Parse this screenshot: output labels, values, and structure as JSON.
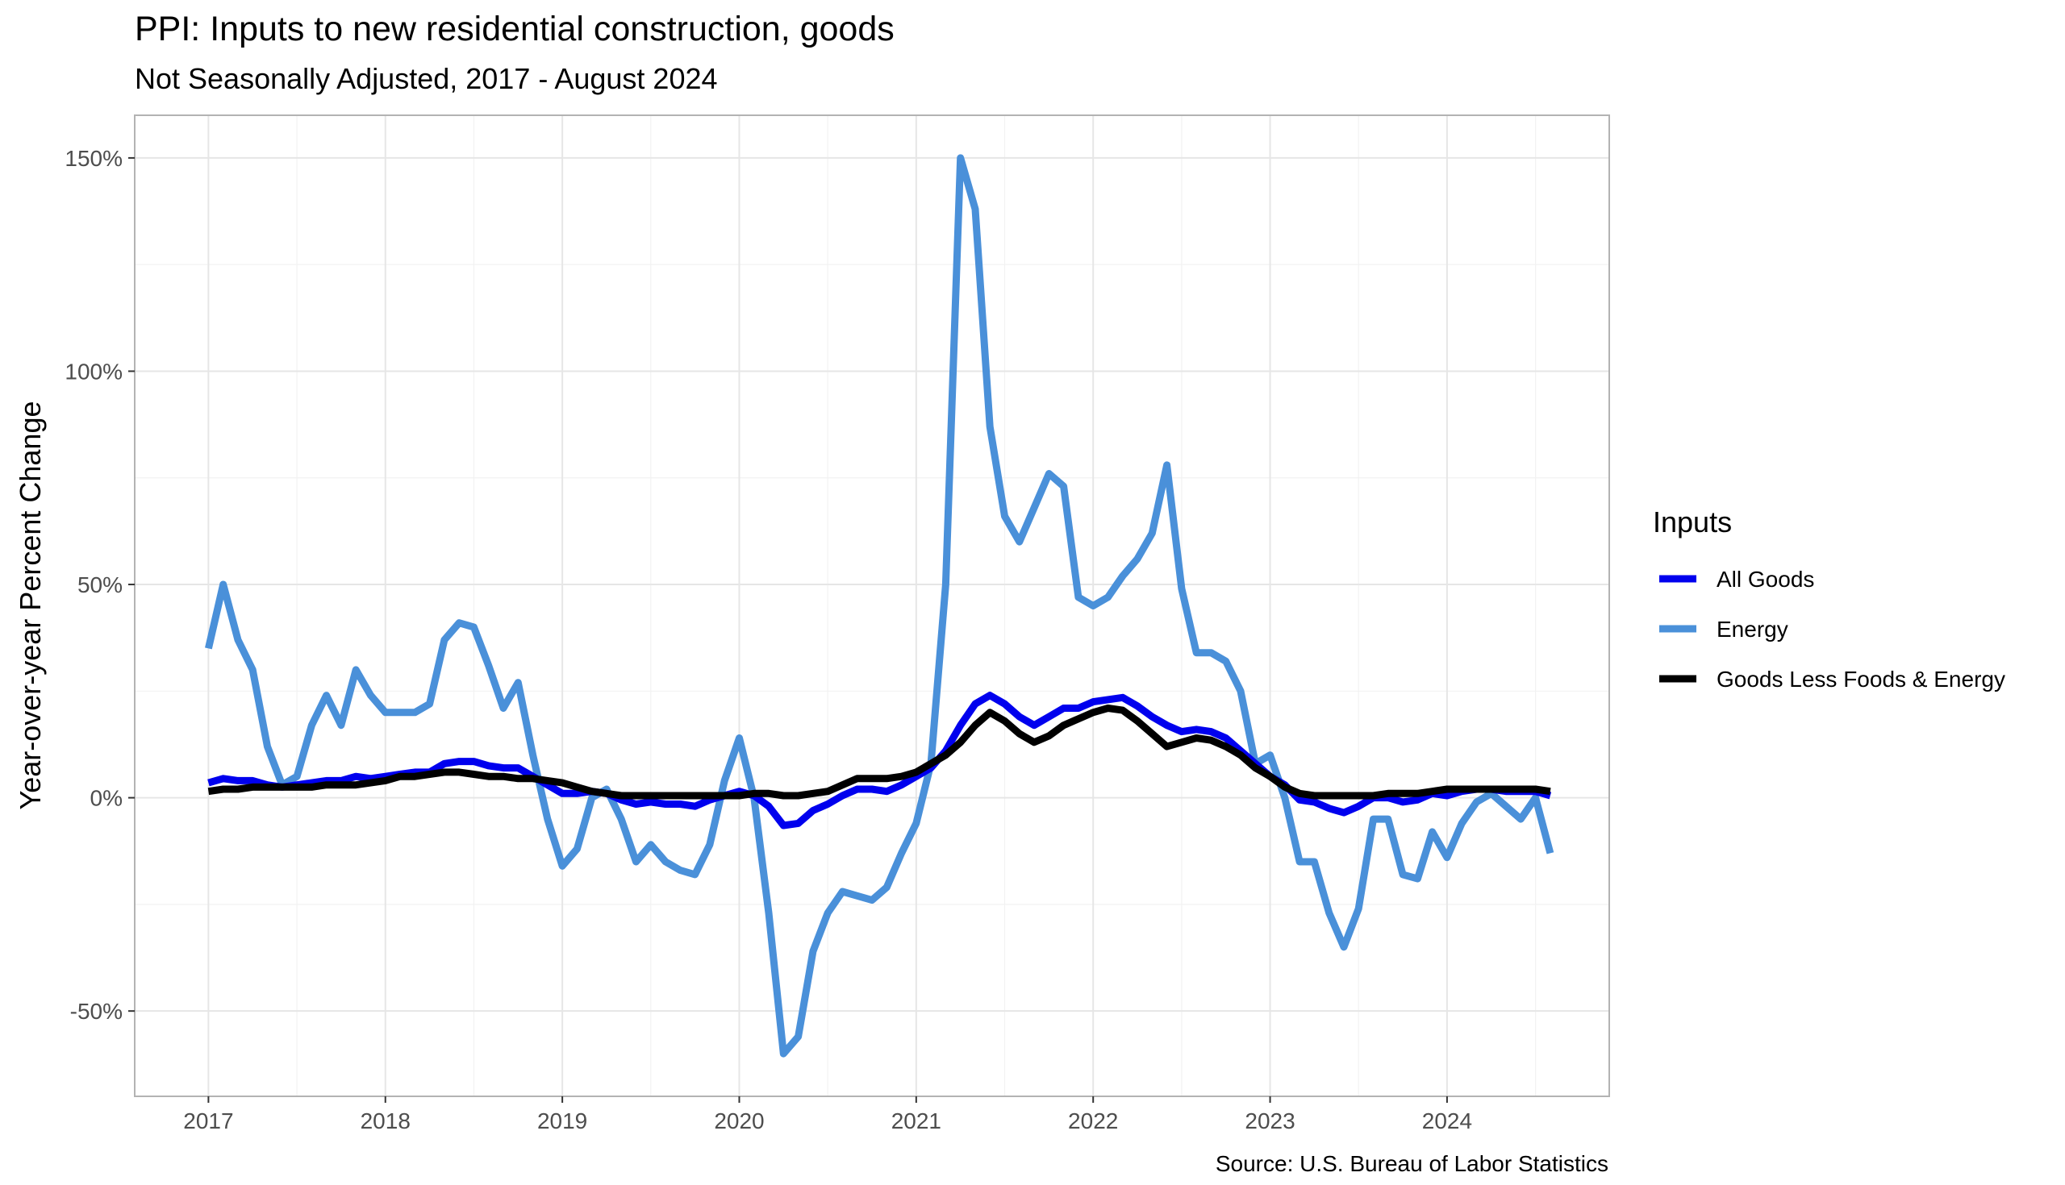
{
  "chart_data": {
    "type": "line",
    "title": "PPI: Inputs to new residential construction, goods",
    "subtitle": "Not Seasonally Adjusted, 2017 - August 2024",
    "ylabel": "Year-over-year Percent Change",
    "xlabel": "",
    "caption": "Source: U.S. Bureau of Labor Statistics",
    "x_ticks": [
      "2017",
      "2018",
      "2019",
      "2020",
      "2021",
      "2022",
      "2023",
      "2024"
    ],
    "y_ticks": [
      "-50%",
      "0%",
      "50%",
      "100%",
      "150%"
    ],
    "y_tick_values": [
      -50,
      0,
      50,
      100,
      150
    ],
    "xlim": [
      "2016-08",
      "2024-12"
    ],
    "ylim": [
      -70,
      160
    ],
    "grid": true,
    "legend": {
      "title": "Inputs",
      "position": "right"
    },
    "x": [
      "2017-01",
      "2017-02",
      "2017-03",
      "2017-04",
      "2017-05",
      "2017-06",
      "2017-07",
      "2017-08",
      "2017-09",
      "2017-10",
      "2017-11",
      "2017-12",
      "2018-01",
      "2018-02",
      "2018-03",
      "2018-04",
      "2018-05",
      "2018-06",
      "2018-07",
      "2018-08",
      "2018-09",
      "2018-10",
      "2018-11",
      "2018-12",
      "2019-01",
      "2019-02",
      "2019-03",
      "2019-04",
      "2019-05",
      "2019-06",
      "2019-07",
      "2019-08",
      "2019-09",
      "2019-10",
      "2019-11",
      "2019-12",
      "2020-01",
      "2020-02",
      "2020-03",
      "2020-04",
      "2020-05",
      "2020-06",
      "2020-07",
      "2020-08",
      "2020-09",
      "2020-10",
      "2020-11",
      "2020-12",
      "2021-01",
      "2021-02",
      "2021-03",
      "2021-04",
      "2021-05",
      "2021-06",
      "2021-07",
      "2021-08",
      "2021-09",
      "2021-10",
      "2021-11",
      "2021-12",
      "2022-01",
      "2022-02",
      "2022-03",
      "2022-04",
      "2022-05",
      "2022-06",
      "2022-07",
      "2022-08",
      "2022-09",
      "2022-10",
      "2022-11",
      "2022-12",
      "2023-01",
      "2023-02",
      "2023-03",
      "2023-04",
      "2023-05",
      "2023-06",
      "2023-07",
      "2023-08",
      "2023-09",
      "2023-10",
      "2023-11",
      "2023-12",
      "2024-01",
      "2024-02",
      "2024-03",
      "2024-04",
      "2024-05",
      "2024-06",
      "2024-07",
      "2024-08"
    ],
    "series": [
      {
        "name": "All Goods",
        "color": "#0000ee",
        "values": [
          3.5,
          4.5,
          4.0,
          4.0,
          3.0,
          2.5,
          3.0,
          3.5,
          4.0,
          4.0,
          5.0,
          4.5,
          5.0,
          5.5,
          6.0,
          6.0,
          8.0,
          8.5,
          8.5,
          7.5,
          7.0,
          7.0,
          5.0,
          3.0,
          1.0,
          1.0,
          1.5,
          1.0,
          -0.5,
          -1.5,
          -1.0,
          -1.5,
          -1.5,
          -2.0,
          -0.5,
          0.5,
          1.5,
          0.5,
          -2.0,
          -6.5,
          -6.0,
          -3.0,
          -1.5,
          0.5,
          2.0,
          2.0,
          1.5,
          3.0,
          5.0,
          7.0,
          11.0,
          17.0,
          22.0,
          24.0,
          22.0,
          19.0,
          17.0,
          19.0,
          21.0,
          21.0,
          22.5,
          23.0,
          23.5,
          21.5,
          19.0,
          17.0,
          15.5,
          16.0,
          15.5,
          14.0,
          11.0,
          8.0,
          5.0,
          3.0,
          -0.5,
          -1.0,
          -2.5,
          -3.5,
          -2.0,
          0.0,
          0.0,
          -1.0,
          -0.5,
          1.0,
          0.5,
          1.5,
          2.0,
          2.0,
          1.5,
          1.5,
          1.5,
          0.5
        ]
      },
      {
        "name": "Energy",
        "color": "#4a90d9",
        "values": [
          35,
          50,
          37,
          30,
          12,
          3,
          5,
          17,
          24,
          17,
          30,
          24,
          20,
          20,
          20,
          22,
          37,
          41,
          40,
          31,
          21,
          27,
          10,
          -5,
          -16,
          -12,
          0,
          2,
          -5,
          -15,
          -11,
          -15,
          -17,
          -18,
          -11,
          4,
          14,
          0,
          -27,
          -60,
          -56,
          -36,
          -27,
          -22,
          -23,
          -24,
          -21,
          -13,
          -6,
          8,
          50,
          150,
          138,
          87,
          66,
          60,
          68,
          76,
          73,
          47,
          45,
          47,
          52,
          56,
          62,
          78,
          49,
          34,
          34,
          32,
          25,
          8,
          10,
          0,
          -15,
          -15,
          -27,
          -35,
          -26,
          -5,
          -5,
          -18,
          -19,
          -8,
          -14,
          -6,
          -1,
          1,
          -2,
          -5,
          0,
          -13
        ]
      },
      {
        "name": "Goods Less Foods & Energy",
        "color": "#000000",
        "values": [
          1.5,
          2.0,
          2.0,
          2.5,
          2.5,
          2.5,
          2.5,
          2.5,
          3.0,
          3.0,
          3.0,
          3.5,
          4.0,
          5.0,
          5.0,
          5.5,
          6.0,
          6.0,
          5.5,
          5.0,
          5.0,
          4.5,
          4.5,
          4.0,
          3.5,
          2.5,
          1.5,
          1.0,
          0.5,
          0.5,
          0.5,
          0.5,
          0.5,
          0.5,
          0.5,
          0.5,
          0.5,
          1.0,
          1.0,
          0.5,
          0.5,
          1.0,
          1.5,
          3.0,
          4.5,
          4.5,
          4.5,
          5.0,
          6.0,
          8.0,
          10.0,
          13.0,
          17.0,
          20.0,
          18.0,
          15.0,
          13.0,
          14.5,
          17.0,
          18.5,
          20.0,
          21.0,
          20.5,
          18.0,
          15.0,
          12.0,
          13.0,
          14.0,
          13.5,
          12.0,
          10.0,
          7.0,
          5.0,
          2.5,
          1.0,
          0.5,
          0.5,
          0.5,
          0.5,
          0.5,
          1.0,
          1.0,
          1.0,
          1.5,
          2.0,
          2.0,
          2.0,
          2.0,
          2.0,
          2.0,
          2.0,
          1.5
        ]
      }
    ]
  }
}
